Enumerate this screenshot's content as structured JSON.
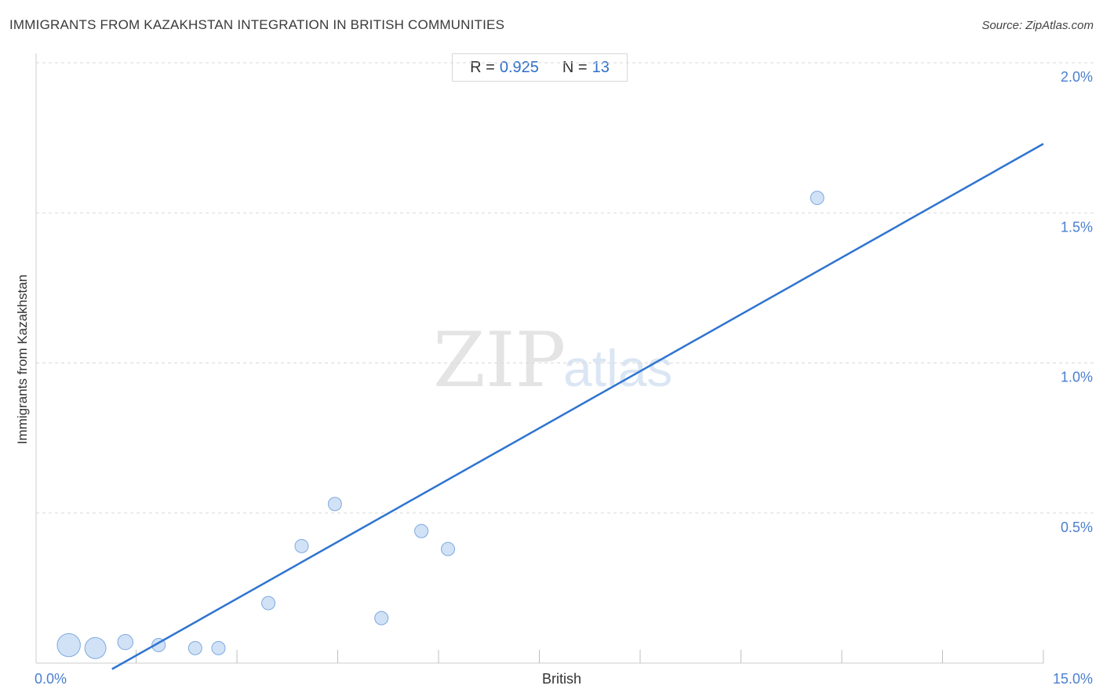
{
  "header": {
    "title": "IMMIGRANTS FROM KAZAKHSTAN INTEGRATION IN BRITISH COMMUNITIES",
    "source": "Source: ZipAtlas.com"
  },
  "stats": {
    "r_label": "R =",
    "r_value": "0.925",
    "n_label": "N =",
    "n_value": "13"
  },
  "watermark": {
    "zip": "ZIP",
    "atlas": "atlas"
  },
  "colors": {
    "point_fill": "#c9ddf5",
    "point_stroke": "#7ea9e0",
    "trend_line": "#2f74d0",
    "tick_label": "#4a7fcf",
    "grid": "#d9d9d9"
  },
  "chart_data": {
    "type": "scatter",
    "title": "IMMIGRANTS FROM KAZAKHSTAN INTEGRATION IN BRITISH COMMUNITIES",
    "xlabel": "British",
    "ylabel": "Immigrants from Kazakhstan",
    "xlim": [
      0,
      15
    ],
    "ylim": [
      0,
      2.0
    ],
    "x_tick_labels": [
      {
        "value": 0,
        "label": "0.0%"
      },
      {
        "value": 15,
        "label": "15.0%"
      }
    ],
    "y_tick_labels": [
      {
        "value": 0.5,
        "label": "0.5%"
      },
      {
        "value": 1.0,
        "label": "1.0%"
      },
      {
        "value": 1.5,
        "label": "1.5%"
      },
      {
        "value": 2.0,
        "label": "2.0%"
      }
    ],
    "grid": "horizontal dashed",
    "points": [
      {
        "x": 0.35,
        "y": 0.06,
        "size": 3
      },
      {
        "x": 0.75,
        "y": 0.05,
        "size": 2.5
      },
      {
        "x": 1.2,
        "y": 0.07,
        "size": 1.3
      },
      {
        "x": 1.7,
        "y": 0.06,
        "size": 1
      },
      {
        "x": 2.25,
        "y": 0.05,
        "size": 1
      },
      {
        "x": 2.6,
        "y": 0.05,
        "size": 1
      },
      {
        "x": 3.35,
        "y": 0.2,
        "size": 1
      },
      {
        "x": 3.85,
        "y": 0.39,
        "size": 1
      },
      {
        "x": 4.35,
        "y": 0.53,
        "size": 1
      },
      {
        "x": 5.05,
        "y": 0.15,
        "size": 1
      },
      {
        "x": 5.65,
        "y": 0.44,
        "size": 1
      },
      {
        "x": 6.05,
        "y": 0.38,
        "size": 1
      },
      {
        "x": 11.6,
        "y": 1.55,
        "size": 1
      }
    ],
    "trend": {
      "x": [
        1.0,
        15.0
      ],
      "y": [
        -0.02,
        1.73
      ]
    }
  }
}
